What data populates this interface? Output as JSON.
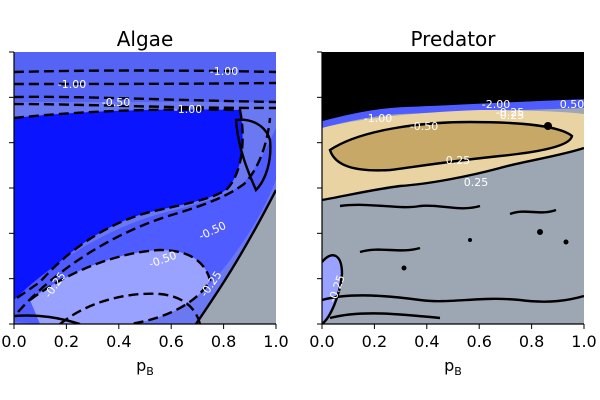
{
  "chart_data": [
    {
      "type": "heatmap",
      "title": "Algae",
      "xlabel_main": "p",
      "xlabel_sub": "B",
      "ylabel": "",
      "xlim": [
        0.0,
        1.0
      ],
      "x_ticks": [
        "0.0",
        "0.2",
        "0.4",
        "0.6",
        "0.8",
        "1.0"
      ],
      "y_tick_labels_shown": false,
      "contour_labels": [
        "-1.00",
        "-1.00",
        "-1.00",
        "-0.50",
        "-0.50",
        "-0.50",
        "-0.25",
        "-0.25"
      ],
      "colors": {
        "deep_blue": "#0a14ff",
        "mid_blue": "#4f5cff",
        "pale_blue": "#9aa2ff",
        "outer_blue": "#6a78f2",
        "grey": "#9da7b3"
      }
    },
    {
      "type": "heatmap",
      "title": "Predator",
      "xlabel_main": "p",
      "xlabel_sub": "B",
      "ylabel": "",
      "xlim": [
        0.0,
        1.0
      ],
      "x_ticks": [
        "0.0",
        "0.2",
        "0.4",
        "0.6",
        "0.8",
        "1.0"
      ],
      "y_tick_labels_shown": false,
      "contour_labels": [
        "-2.00",
        "-1.00",
        "-0.50",
        "-0.25",
        "0.25",
        "0.25",
        "0.25",
        "0.50",
        "-0.25"
      ],
      "colors": {
        "black": "#000000",
        "tan_dark": "#c8a866",
        "tan_light": "#ead3a2",
        "grey": "#9da7b3",
        "pale_blue": "#9aa2ff"
      }
    }
  ]
}
